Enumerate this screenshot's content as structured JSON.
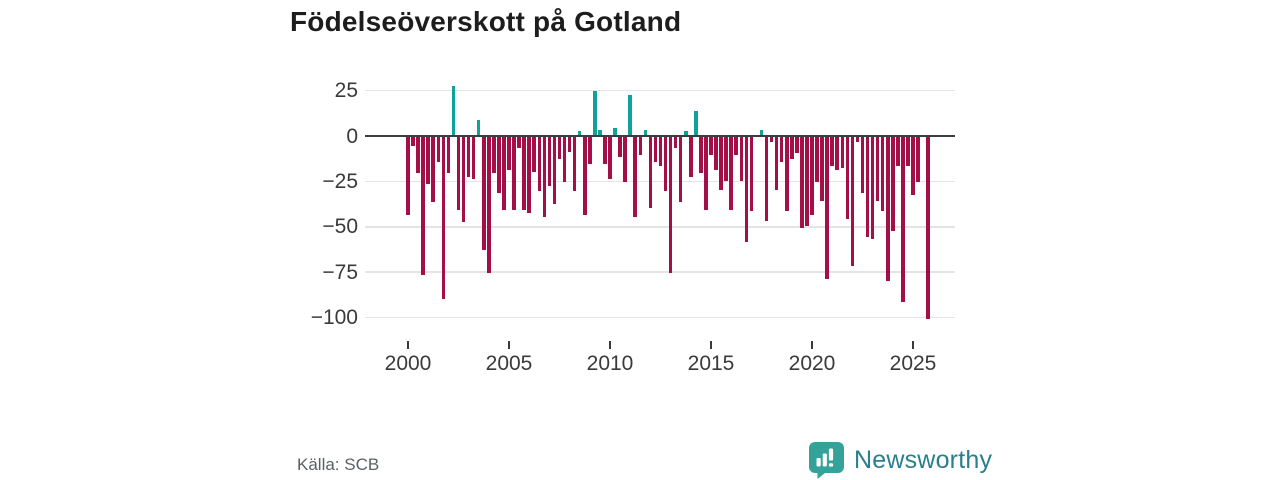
{
  "title": "Födelseöverskott på Gotland",
  "source": "Källa: SCB",
  "brand": {
    "name": "Newsworthy",
    "icon": "newsworthy-bubble-barchart-icon",
    "icon_color": "#35a29a",
    "text_color": "#2a7f8c"
  },
  "colors": {
    "negative_bar": "#a50f47",
    "positive_bar": "#0fa298",
    "grid": "#e4e4e4",
    "zero_axis": "#3d3d3d",
    "tick_text": "#3a3a3a"
  },
  "chart_data": {
    "type": "bar",
    "title": "Födelseöverskott på Gotland",
    "period": "quarterly",
    "start": "2000-Q1",
    "end": "2025-Q4",
    "x_ticks": [
      2000,
      2005,
      2010,
      2015,
      2020,
      2025
    ],
    "y_ticks": [
      25,
      0,
      -25,
      -50,
      -75,
      -100
    ],
    "y_tick_labels": [
      "25",
      "0",
      "−25",
      "−50",
      "−75",
      "−100"
    ],
    "ylim": [
      -105,
      30
    ],
    "grid": true,
    "legend": "none",
    "series": [
      {
        "name": "Födelseöverskott",
        "values": [
          -43,
          -5,
          -20,
          -76,
          -26,
          -36,
          -14,
          -89,
          -20,
          27,
          -40,
          -47,
          -22,
          -23,
          8,
          -62,
          -75,
          -20,
          -31,
          -40,
          -18,
          -40,
          -6,
          -40,
          -42,
          -19,
          -30,
          -44,
          -27,
          -37,
          -12,
          -25,
          -8,
          -30,
          2,
          -43,
          -15,
          24,
          3,
          -15,
          -23,
          4,
          -11,
          -25,
          22,
          -44,
          -10,
          3,
          -39,
          -14,
          -16,
          -30,
          -75,
          -6,
          -36,
          2,
          -22,
          13,
          -20,
          -40,
          -10,
          -18,
          -29,
          -24,
          -40,
          -10,
          -24,
          -58,
          -41,
          0,
          3,
          -46,
          -3,
          -29,
          -14,
          -41,
          -12,
          -9,
          -50,
          -49,
          -43,
          -25,
          -35,
          -78,
          -16,
          -18,
          -17,
          -45,
          -71,
          -3,
          -31,
          -55,
          -56,
          -35,
          -41,
          -79,
          -52,
          -16,
          -91,
          -16,
          -32,
          -25,
          0,
          -100
        ]
      }
    ]
  }
}
